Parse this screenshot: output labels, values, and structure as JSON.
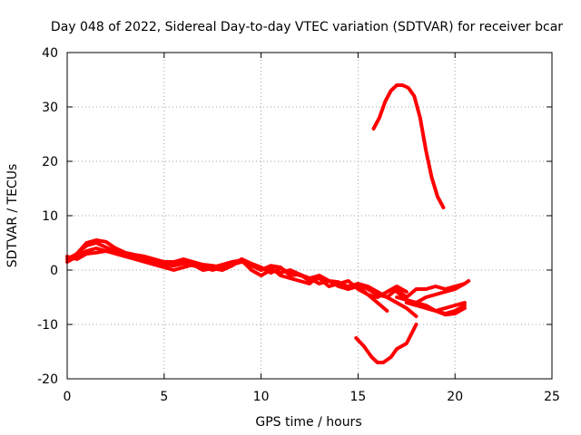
{
  "chart_data": {
    "type": "line",
    "title": "Day 048 of 2022, Sidereal Day-to-day VTEC variation (SDTVAR) for receiver bcar",
    "xlabel": "GPS time / hours",
    "ylabel": "SDTVAR / TECUs",
    "xlim": [
      0,
      25
    ],
    "ylim": [
      -20,
      40
    ],
    "xticks": [
      0,
      5,
      10,
      15,
      20,
      25
    ],
    "yticks": [
      -20,
      -10,
      0,
      10,
      20,
      30,
      40
    ],
    "grid": true,
    "legend": "none",
    "color": "#ff0000",
    "series": [
      {
        "name": "main-band-a",
        "x": [
          0,
          0.5,
          1,
          1.5,
          2,
          2.5,
          3,
          3.5,
          4,
          4.5,
          5,
          5.5,
          6,
          6.5,
          7,
          7.5,
          8,
          8.5,
          9,
          9.5,
          10,
          10.5,
          11,
          11.5,
          12,
          12.5,
          13,
          13.5,
          14,
          14.5,
          15,
          15.5,
          16,
          16.5,
          17,
          17.5,
          18
        ],
        "y": [
          2,
          3,
          4.5,
          5,
          4.2,
          3.5,
          3,
          2.5,
          2,
          1.2,
          1,
          0.8,
          1.2,
          0.8,
          0.5,
          0,
          0.5,
          1,
          1.5,
          0.8,
          0,
          0.5,
          -1,
          -1.5,
          -2,
          -2.5,
          -1,
          -2,
          -3,
          -3.5,
          -2.5,
          -3,
          -4,
          -5,
          -6,
          -7,
          -8.5
        ]
      },
      {
        "name": "main-band-b",
        "x": [
          0,
          0.5,
          1,
          1.5,
          2,
          2.5,
          3,
          3.5,
          4,
          4.5,
          5,
          5.5,
          6,
          6.5,
          7,
          7.5,
          8,
          8.5,
          9,
          9.5,
          10,
          10.5,
          11,
          11.5,
          12,
          12.5,
          13,
          13.5,
          14,
          14.5,
          15,
          15.5,
          16,
          16.5,
          17,
          17.5
        ],
        "y": [
          1.5,
          2.5,
          3.5,
          4,
          3.5,
          3,
          2.5,
          2,
          1.5,
          1,
          0.5,
          0,
          0.5,
          1,
          0,
          0.3,
          0,
          0.8,
          2,
          1.2,
          0.5,
          -0.5,
          0.3,
          -0.5,
          -1,
          -1.5,
          -2.5,
          -2,
          -2.5,
          -2,
          -3.5,
          -4.5,
          -5,
          -4,
          -3,
          -4
        ]
      },
      {
        "name": "main-band-c",
        "x": [
          0,
          0.5,
          1,
          1.5,
          2,
          2.5,
          3,
          3.5,
          4,
          4.5,
          5,
          5.5,
          6,
          6.5,
          7,
          7.5,
          8,
          8.5,
          9,
          9.5,
          10,
          10.5,
          11,
          11.5,
          12,
          12.5,
          13,
          13.5,
          14,
          14.5,
          15,
          15.5,
          16
        ],
        "y": [
          2.5,
          2,
          3,
          3.2,
          3.5,
          3.2,
          2.8,
          2.2,
          1.8,
          1.5,
          1.2,
          1,
          1.5,
          1,
          0.8,
          0.5,
          1,
          1.5,
          1.8,
          0,
          -1,
          0,
          -0.5,
          0,
          -0.8,
          -2,
          -1.5,
          -3,
          -2.5,
          -3,
          -2.5,
          -3.5,
          -4.5
        ]
      },
      {
        "name": "main-band-d",
        "x": [
          0.5,
          1,
          1.5,
          2,
          2.5,
          3,
          3.5,
          4,
          4.5,
          5,
          5.5,
          6,
          6.5,
          7,
          7.5,
          8,
          8.5,
          9,
          9.5,
          10,
          10.5,
          11,
          11.5,
          12,
          12.5,
          13,
          13.5,
          14,
          14.5,
          15,
          15.5,
          16,
          16.5
        ],
        "y": [
          3,
          5,
          5.5,
          5.2,
          4,
          3.2,
          2.8,
          2.5,
          2,
          1.5,
          1.5,
          2,
          1.5,
          1,
          0.8,
          0.5,
          1,
          2,
          1,
          0,
          0.8,
          0.5,
          -1,
          -0.8,
          -1.5,
          -1,
          -2,
          -2.2,
          -3.5,
          -3,
          -4.5,
          -6,
          -7.5
        ]
      },
      {
        "name": "tail-upper-a",
        "x": [
          16,
          16.5,
          17,
          17.5,
          18,
          18.5,
          19,
          19.5,
          20,
          20.5,
          20.7
        ],
        "y": [
          -4.5,
          -5,
          -3.5,
          -5,
          -3.5,
          -3.5,
          -3,
          -3.5,
          -3,
          -2.5,
          -2
        ]
      },
      {
        "name": "tail-upper-b",
        "x": [
          17,
          17.5,
          18,
          18.5,
          19,
          19.5,
          20,
          20.5
        ],
        "y": [
          -4,
          -5.5,
          -6,
          -5,
          -4.5,
          -4,
          -3.5,
          -2.5
        ]
      },
      {
        "name": "tail-lower-a",
        "x": [
          17.5,
          18,
          18.5,
          19,
          19.5,
          20,
          20.5
        ],
        "y": [
          -6,
          -6.5,
          -7,
          -7.5,
          -7,
          -6.5,
          -6
        ]
      },
      {
        "name": "tail-lower-b",
        "x": [
          17,
          17.5,
          18,
          18.5,
          19,
          19.5,
          20,
          20.5
        ],
        "y": [
          -5,
          -5.5,
          -6,
          -6.5,
          -7.5,
          -8,
          -7.5,
          -6.5
        ]
      },
      {
        "name": "tail-lower-c",
        "x": [
          18.5,
          19,
          19.5,
          20,
          20.5
        ],
        "y": [
          -7,
          -7.5,
          -8.2,
          -8,
          -7
        ]
      },
      {
        "name": "low-dip-arc",
        "x": [
          14.9,
          15.3,
          15.7,
          16,
          16.3,
          16.7,
          17,
          17.5,
          18
        ],
        "y": [
          -12.5,
          -14,
          -16,
          -17,
          -17,
          -16,
          -14.5,
          -13.5,
          -10
        ]
      },
      {
        "name": "high-peak-arc",
        "x": [
          15.8,
          16.1,
          16.4,
          16.7,
          17,
          17.3,
          17.6,
          17.9,
          18.2,
          18.5,
          18.8,
          19.1,
          19.4
        ],
        "y": [
          26,
          28,
          31,
          33,
          34,
          34,
          33.5,
          32,
          28,
          22,
          17,
          13.5,
          11.5
        ]
      }
    ]
  }
}
